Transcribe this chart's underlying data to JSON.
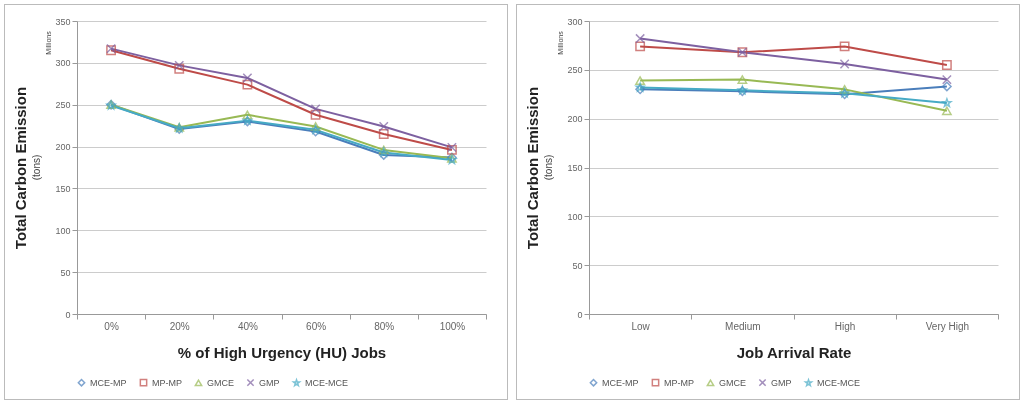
{
  "chart_data": [
    {
      "type": "line",
      "xlabel": "% of High Urgency (HU) Jobs",
      "ylabel": "Total Carbon Emission",
      "annotations": [
        "(tons)",
        "Millions"
      ],
      "categories": [
        "0%",
        "20%",
        "40%",
        "60%",
        "80%",
        "100%"
      ],
      "ylim": [
        0,
        350
      ],
      "yticks": [
        0,
        50,
        100,
        150,
        200,
        250,
        300,
        350
      ],
      "grid": "y",
      "legend": "bottom",
      "series": [
        {
          "name": "MCE-MP",
          "color": "#4a7ebb",
          "marker": "diamond",
          "values": [
            250,
            221,
            230,
            218,
            190,
            187
          ]
        },
        {
          "name": "MP-MP",
          "color": "#be4b48",
          "marker": "square",
          "values": [
            315,
            293,
            274,
            238,
            215,
            196
          ]
        },
        {
          "name": "GMCE",
          "color": "#98b954",
          "marker": "triangle",
          "values": [
            250,
            223,
            238,
            224,
            196,
            186
          ]
        },
        {
          "name": "GMP",
          "color": "#7d60a0",
          "marker": "cross",
          "values": [
            317,
            297,
            282,
            245,
            224,
            199
          ]
        },
        {
          "name": "MCE-MCE",
          "color": "#46aac5",
          "marker": "star",
          "values": [
            249,
            222,
            231,
            220,
            193,
            184
          ]
        }
      ]
    },
    {
      "type": "line",
      "xlabel": "Job Arrival Rate",
      "ylabel": "Total Carbon Emission",
      "annotations": [
        "(tons)",
        "Millions"
      ],
      "categories": [
        "Low",
        "Medium",
        "High",
        "Very High"
      ],
      "ylim": [
        0,
        300
      ],
      "yticks": [
        0,
        50,
        100,
        150,
        200,
        250,
        300
      ],
      "grid": "y",
      "legend": "bottom",
      "series": [
        {
          "name": "MCE-MP",
          "color": "#4a7ebb",
          "marker": "diamond",
          "values": [
            230,
            228,
            225,
            233
          ]
        },
        {
          "name": "MP-MP",
          "color": "#be4b48",
          "marker": "square",
          "values": [
            274,
            268,
            274,
            255
          ]
        },
        {
          "name": "GMCE",
          "color": "#98b954",
          "marker": "triangle",
          "values": [
            239,
            240,
            230,
            208
          ]
        },
        {
          "name": "GMP",
          "color": "#7d60a0",
          "marker": "cross",
          "values": [
            282,
            268,
            256,
            240
          ]
        },
        {
          "name": "MCE-MCE",
          "color": "#46aac5",
          "marker": "star",
          "values": [
            232,
            229,
            226,
            216
          ]
        }
      ]
    }
  ]
}
